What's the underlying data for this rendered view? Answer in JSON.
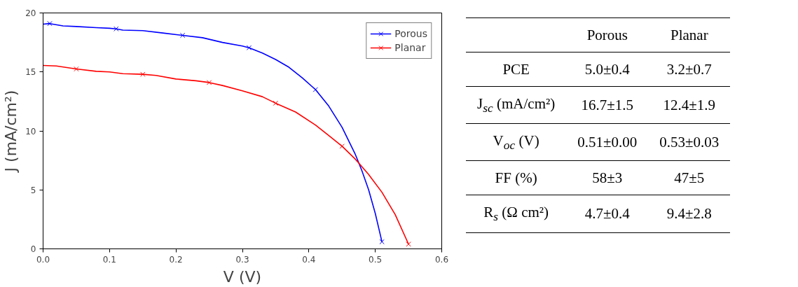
{
  "chart_data": [
    {
      "type": "line",
      "xlabel": "V (V)",
      "ylabel": "J (mA/cm²)",
      "xlim": [
        0.0,
        0.6
      ],
      "ylim": [
        0,
        20
      ],
      "xticks": [
        {
          "value": 0,
          "label": "0.0"
        },
        0.1,
        0.2,
        0.3,
        0.4,
        0.5,
        0.6
      ],
      "yticks": [
        0,
        5,
        10,
        15,
        20
      ],
      "grid": false,
      "legend": "top right",
      "line_style": "solid",
      "series": [
        {
          "name": "Porous",
          "color": "#0000ff",
          "marker": "none",
          "x": [
            0,
            0.01,
            0.03,
            0.05,
            0.08,
            0.1,
            0.11,
            0.12,
            0.15,
            0.18,
            0.21,
            0.24,
            0.27,
            0.3,
            0.31,
            0.33,
            0.35,
            0.37,
            0.39,
            0.41,
            0.43,
            0.45,
            0.47,
            0.48,
            0.49,
            0.5,
            0.51
          ],
          "values": [
            19.05,
            19.1,
            18.9,
            18.85,
            18.75,
            18.7,
            18.65,
            18.55,
            18.5,
            18.3,
            18.1,
            17.9,
            17.5,
            17.2,
            17.05,
            16.6,
            16.05,
            15.4,
            14.5,
            13.5,
            12.1,
            10.3,
            8.0,
            6.6,
            5.0,
            3.0,
            0.6
          ]
        },
        {
          "type": "scatter",
          "color": "#0000ff",
          "marker": "cross",
          "x": [
            0.01,
            0.11,
            0.21,
            0.31,
            0.41,
            0.51
          ],
          "values": [
            19.1,
            18.65,
            18.1,
            17.05,
            13.5,
            0.6
          ]
        },
        {
          "name": "Planar",
          "color": "#ff0000",
          "marker": "none",
          "x": [
            0,
            0.02,
            0.05,
            0.08,
            0.1,
            0.12,
            0.15,
            0.17,
            0.2,
            0.23,
            0.25,
            0.27,
            0.3,
            0.33,
            0.35,
            0.38,
            0.41,
            0.43,
            0.45,
            0.47,
            0.49,
            0.51,
            0.53,
            0.55
          ],
          "values": [
            15.55,
            15.5,
            15.25,
            15.05,
            15.0,
            14.85,
            14.8,
            14.7,
            14.4,
            14.25,
            14.1,
            13.85,
            13.4,
            12.9,
            12.35,
            11.6,
            10.5,
            9.6,
            8.7,
            7.6,
            6.3,
            4.8,
            2.9,
            0.4
          ]
        },
        {
          "type": "scatter",
          "color": "#ff0000",
          "marker": "cross",
          "x": [
            0.05,
            0.15,
            0.25,
            0.35,
            0.45,
            0.55
          ],
          "values": [
            15.25,
            14.8,
            14.1,
            12.35,
            8.7,
            0.4
          ]
        }
      ]
    },
    {
      "type": "other",
      "categories": [
        "Porous",
        "Planar"
      ],
      "y_categories": [
        "PCE",
        "J$_{sc}$ (mA/cm²)",
        "V$_{oc}$ (V)",
        "FF (%)",
        "R$_{s}$ (Ω cm²)"
      ],
      "cell_labels": [
        [
          "5.0±0.4",
          "3.2±0.7"
        ],
        [
          "16.7±1.5",
          "12.4±1.9"
        ],
        [
          "0.51±0.00",
          "0.53±0.03"
        ],
        [
          "58±3",
          "47±5"
        ],
        [
          "4.7±0.4",
          "9.4±2.8"
        ]
      ]
    }
  ]
}
